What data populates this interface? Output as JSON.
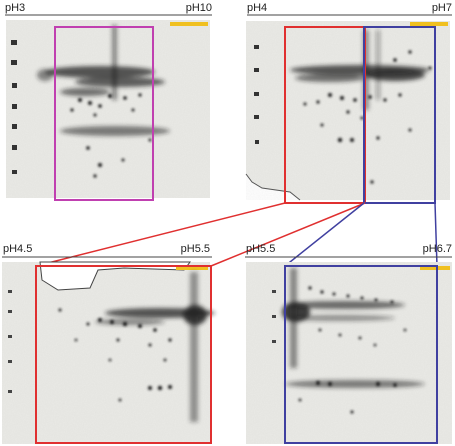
{
  "figure": {
    "panels": [
      {
        "id": "a",
        "label_left": "pH3",
        "label_right": "pH10"
      },
      {
        "id": "b",
        "label_left": "pH4",
        "label_right": "pH7"
      },
      {
        "id": "c",
        "label_left": "pH4.5",
        "label_right": "pH5.5"
      },
      {
        "id": "d",
        "label_left": "pH5.5",
        "label_right": "pH6.7"
      }
    ],
    "colors": {
      "magenta_box": "#c040b0",
      "red_box": "#e03030",
      "blue_box": "#4040a0",
      "gel_background": "#e9e9e6",
      "spot": "#1a1a1a",
      "marker_strip": "#f0c020"
    }
  }
}
